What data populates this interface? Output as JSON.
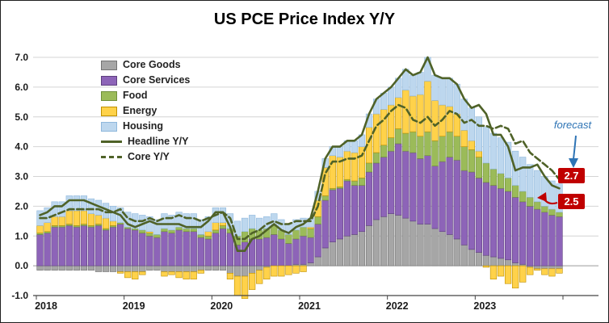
{
  "title": "US PCE Price Index Y/Y",
  "legend": {
    "items": [
      {
        "label": "Core Goods"
      },
      {
        "label": "Core Services"
      },
      {
        "label": "Food"
      },
      {
        "label": "Energy"
      },
      {
        "label": "Housing"
      },
      {
        "label": "Headline Y/Y"
      },
      {
        "label": "Core Y/Y"
      }
    ]
  },
  "annotations": {
    "forecast_label": "forecast",
    "core_forecast": "2.7",
    "headline_forecast": "2.5",
    "forecast_arrow_color": "#2E74B5",
    "badge_color": "#C00000",
    "pointer_color": "#C00000"
  },
  "chart_data": {
    "type": "bar",
    "stacked": true,
    "title": "US PCE Price Index Y/Y",
    "x_unit": "month",
    "x_start": "2018-01",
    "x_end": "2023-12",
    "xlabel": "",
    "ylabel": "",
    "ylim": [
      -1,
      7
    ],
    "grid": true,
    "legend_position": "upper-left",
    "y_ticks": [
      "7.0",
      "6.0",
      "5.0",
      "4.0",
      "3.0",
      "2.0",
      "1.0",
      "0.0",
      "-1.0"
    ],
    "x_ticks": [
      "2018",
      "2019",
      "2020",
      "2021",
      "2022",
      "2023"
    ],
    "series": [
      {
        "name": "Core Goods",
        "color": "#a6a6a6",
        "border": "#737373",
        "values": [
          -0.15,
          -0.15,
          -0.15,
          -0.15,
          -0.15,
          -0.15,
          -0.15,
          -0.15,
          -0.2,
          -0.2,
          -0.2,
          -0.2,
          -0.2,
          -0.2,
          -0.2,
          -0.15,
          -0.15,
          -0.2,
          -0.2,
          -0.2,
          -0.2,
          -0.2,
          -0.15,
          -0.15,
          -0.15,
          -0.15,
          -0.25,
          -0.35,
          -0.35,
          -0.25,
          -0.15,
          -0.05,
          0,
          0,
          0,
          0.05,
          0.05,
          0.1,
          0.3,
          0.6,
          0.8,
          0.9,
          1,
          1.05,
          1.15,
          1.35,
          1.55,
          1.65,
          1.75,
          1.7,
          1.6,
          1.5,
          1.4,
          1.4,
          1.25,
          1.15,
          1.05,
          0.9,
          0.7,
          0.55,
          0.45,
          0.35,
          0.3,
          0.25,
          0.2,
          0.1,
          0.05,
          -0.05,
          -0.1,
          -0.1,
          -0.1,
          -0.1
        ]
      },
      {
        "name": "Core Services",
        "color": "#8d64b8",
        "border": "#5e3f7e",
        "values": [
          1.05,
          1.1,
          1.3,
          1.3,
          1.35,
          1.3,
          1.35,
          1.3,
          1.35,
          1.2,
          1.3,
          1.4,
          1.25,
          1.2,
          1.1,
          1,
          0.95,
          1.15,
          1.1,
          1.2,
          1.15,
          1.15,
          0.95,
          0.9,
          1.1,
          1.25,
          1.1,
          0.7,
          0.8,
          0.9,
          0.9,
          0.95,
          1.05,
          0.9,
          0.75,
          0.85,
          0.95,
          0.85,
          1.1,
          1.6,
          1.75,
          1.7,
          1.85,
          1.65,
          1.55,
          1.8,
          1.9,
          2,
          2.1,
          2.4,
          2.25,
          2.3,
          2.2,
          2.3,
          2.1,
          2.35,
          2.6,
          2.65,
          2.5,
          2.6,
          2.5,
          2.45,
          2.4,
          2.35,
          2.3,
          2.2,
          2.1,
          2,
          1.9,
          1.8,
          1.7,
          1.65
        ]
      },
      {
        "name": "Food",
        "color": "#9bbb59",
        "border": "#6f8f3b",
        "values": [
          0.05,
          0.05,
          0.05,
          0.05,
          0.05,
          0.05,
          0.05,
          0.05,
          0.05,
          0.05,
          0.05,
          0.05,
          0.05,
          0.05,
          0.1,
          0.1,
          0.1,
          0.1,
          0.1,
          0.1,
          0.1,
          0.1,
          0.1,
          0.1,
          0.1,
          0.1,
          0.15,
          0.3,
          0.35,
          0.35,
          0.3,
          0.3,
          0.3,
          0.3,
          0.3,
          0.3,
          0.3,
          0.3,
          0.25,
          0.15,
          0.05,
          0.05,
          0.05,
          0.15,
          0.25,
          0.3,
          0.35,
          0.4,
          0.45,
          0.5,
          0.6,
          0.7,
          0.75,
          0.8,
          0.85,
          0.85,
          0.85,
          0.8,
          0.8,
          0.75,
          0.7,
          0.65,
          0.55,
          0.5,
          0.45,
          0.4,
          0.35,
          0.3,
          0.25,
          0.2,
          0.2,
          0.15
        ]
      },
      {
        "name": "Energy",
        "color": "#ffd24a",
        "border": "#bf9000",
        "values": [
          0.25,
          0.3,
          0.3,
          0.3,
          0.45,
          0.5,
          0.45,
          0.4,
          0.3,
          0.35,
          0.15,
          -0.05,
          -0.2,
          -0.25,
          -0.1,
          0.05,
          0,
          -0.15,
          -0.1,
          -0.2,
          -0.25,
          -0.25,
          -0.1,
          0.15,
          0.25,
          0.1,
          -0.2,
          -0.65,
          -0.75,
          -0.55,
          -0.45,
          -0.4,
          -0.35,
          -0.35,
          -0.3,
          -0.25,
          -0.2,
          0.05,
          0.55,
          0.95,
          1.1,
          1,
          0.95,
          0.95,
          1.05,
          1.2,
          1.3,
          1.2,
          1.1,
          1.05,
          1.45,
          1.2,
          1.4,
          1.7,
          1.35,
          1.05,
          0.85,
          0.75,
          0.55,
          0.3,
          0.2,
          -0.05,
          -0.45,
          -0.35,
          -0.6,
          -0.75,
          -0.55,
          -0.25,
          -0.05,
          -0.2,
          -0.25,
          -0.15
        ]
      },
      {
        "name": "Housing",
        "color": "#bdd7ee",
        "border": "#8fb8dc",
        "values": [
          0.5,
          0.5,
          0.5,
          0.5,
          0.5,
          0.5,
          0.5,
          0.5,
          0.5,
          0.5,
          0.5,
          0.5,
          0.5,
          0.5,
          0.5,
          0.5,
          0.5,
          0.5,
          0.5,
          0.5,
          0.5,
          0.5,
          0.5,
          0.5,
          0.5,
          0.5,
          0.5,
          0.5,
          0.45,
          0.45,
          0.4,
          0.4,
          0.4,
          0.35,
          0.35,
          0.35,
          0.3,
          0.3,
          0.3,
          0.3,
          0.3,
          0.35,
          0.35,
          0.4,
          0.4,
          0.45,
          0.5,
          0.55,
          0.6,
          0.65,
          0.7,
          0.7,
          0.75,
          0.8,
          0.85,
          0.9,
          0.95,
          1,
          1.05,
          1.1,
          1.15,
          1.2,
          1.2,
          1.2,
          1.2,
          1.15,
          1.15,
          1.1,
          1.05,
          1,
          0.95,
          0.95
        ]
      }
    ],
    "lines": [
      {
        "name": "Headline Y/Y",
        "color": "#4F6228",
        "dash": false,
        "values": [
          1.7,
          1.8,
          2,
          2,
          2.2,
          2.2,
          2.2,
          2.1,
          2,
          1.9,
          1.8,
          1.7,
          1.4,
          1.3,
          1.4,
          1.5,
          1.4,
          1.4,
          1.4,
          1.4,
          1.3,
          1.3,
          1.3,
          1.5,
          1.8,
          1.8,
          1.3,
          0.5,
          0.5,
          0.9,
          1,
          1.2,
          1.4,
          1.2,
          1.1,
          1.3,
          1.4,
          1.6,
          2.5,
          3.6,
          4,
          4,
          4.2,
          4.2,
          4.4,
          5.1,
          5.6,
          5.8,
          6,
          6.3,
          6.6,
          6.4,
          6.5,
          7,
          6.4,
          6.3,
          6.3,
          6.1,
          5.6,
          5.3,
          5.4,
          5.1,
          4.4,
          4.4,
          4,
          3.2,
          3.3,
          3.3,
          3.4,
          3,
          2.7,
          2.6
        ]
      },
      {
        "name": "Core Y/Y",
        "color": "#4F6228",
        "dash": true,
        "values": [
          1.6,
          1.6,
          1.7,
          1.8,
          1.9,
          1.9,
          1.9,
          1.9,
          1.9,
          1.8,
          1.8,
          1.9,
          1.6,
          1.5,
          1.5,
          1.6,
          1.5,
          1.6,
          1.6,
          1.7,
          1.6,
          1.6,
          1.5,
          1.6,
          1.7,
          1.8,
          1.6,
          0.9,
          0.9,
          1.1,
          1.2,
          1.4,
          1.5,
          1.4,
          1.4,
          1.5,
          1.5,
          1.5,
          2,
          3.1,
          3.5,
          3.5,
          3.6,
          3.6,
          3.7,
          4.2,
          4.7,
          4.9,
          5.2,
          5.4,
          5.3,
          4.9,
          4.8,
          5,
          4.7,
          4.9,
          5.2,
          5.1,
          4.8,
          4.9,
          4.7,
          4.7,
          4.6,
          4.7,
          4.6,
          4.1,
          4.2,
          3.8,
          3.6,
          3.4,
          3.2,
          2.9
        ]
      }
    ],
    "forecast": {
      "headline": 2.5,
      "core": 2.7
    }
  }
}
